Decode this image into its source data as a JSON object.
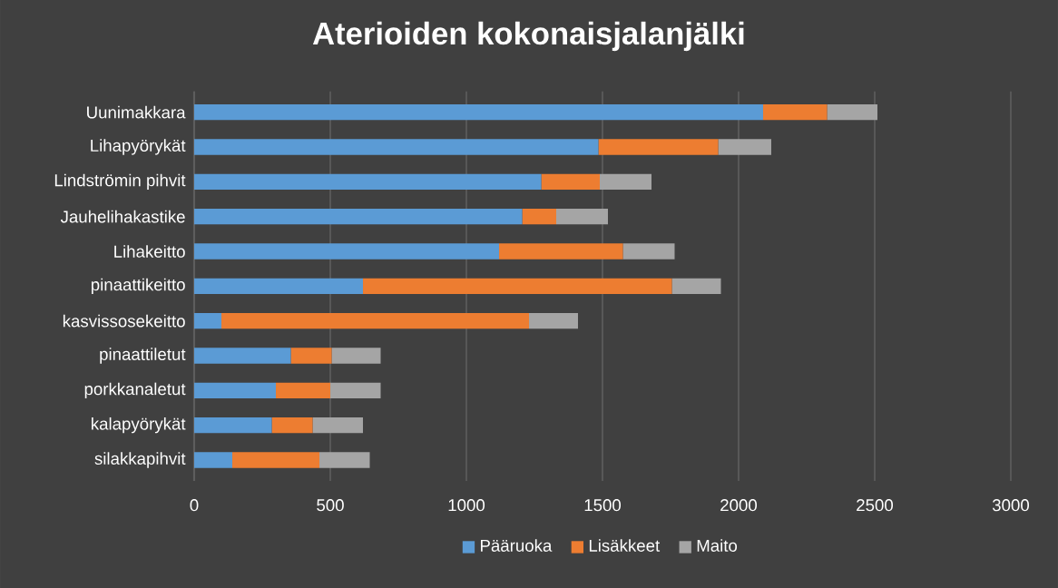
{
  "chart_data": {
    "type": "bar",
    "orientation": "horizontal",
    "stacked": true,
    "title": "Aterioiden kokonaisjalanjälki",
    "categories": [
      "Uunimakkara",
      "Lihapyörykät",
      "Lindströmin pihvit",
      "Jauhelihakastike",
      "Lihakeitto",
      "pinaattikeitto",
      "kasvissosekeitto",
      "pinaattiletut",
      "porkkanaletut",
      "kalapyörykät",
      "silakkapihvit"
    ],
    "series": [
      {
        "name": "Pääruoka",
        "color": "#5b9bd5",
        "values": [
          2090,
          1485,
          1275,
          1205,
          1120,
          620,
          100,
          355,
          300,
          285,
          140
        ]
      },
      {
        "name": "Lisäkkeet",
        "color": "#ed7d31",
        "values": [
          235,
          440,
          215,
          125,
          455,
          1135,
          1130,
          150,
          200,
          150,
          320
        ]
      },
      {
        "name": "Maito",
        "color": "#a5a5a5",
        "values": [
          185,
          195,
          190,
          190,
          190,
          180,
          180,
          180,
          185,
          185,
          185
        ]
      }
    ],
    "xlim": [
      0,
      3000
    ],
    "xticks": [
      0,
      500,
      1000,
      1500,
      2000,
      2500,
      3000
    ],
    "grid": "x",
    "legend": "bottom"
  }
}
